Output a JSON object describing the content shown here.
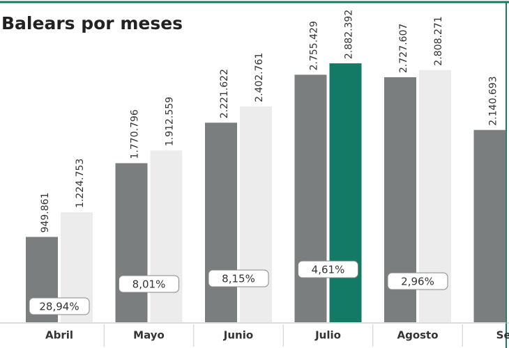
{
  "chart_data": {
    "type": "bar",
    "title": "Balears por meses",
    "categories": [
      "Abril",
      "Mayo",
      "Junio",
      "Julio",
      "Agosto",
      "Sep"
    ],
    "series": [
      {
        "color": "#7b7e7f",
        "values": [
          949861,
          1770796,
          2221622,
          2755429,
          2727607,
          2140693
        ],
        "value_labels": [
          "949.861",
          "1.770.796",
          "2.221.622",
          "2.755.429",
          "2.727.607",
          "2.140.693"
        ]
      },
      {
        "color": "#ececec",
        "values": [
          1224753,
          1912559,
          2402761,
          2882392,
          2808271,
          null
        ],
        "value_labels": [
          "1.224.753",
          "1.912.559",
          "2.402.761",
          "2.882.392",
          "2.808.271",
          null
        ]
      }
    ],
    "highlight": {
      "series": 1,
      "index": 3,
      "color": "#137a65"
    },
    "changes": [
      28.94,
      8.01,
      8.15,
      4.61,
      2.96,
      null
    ],
    "change_labels": [
      "28,94%",
      "8,01%",
      "8,15%",
      "4,61%",
      "2,96%",
      null
    ]
  }
}
